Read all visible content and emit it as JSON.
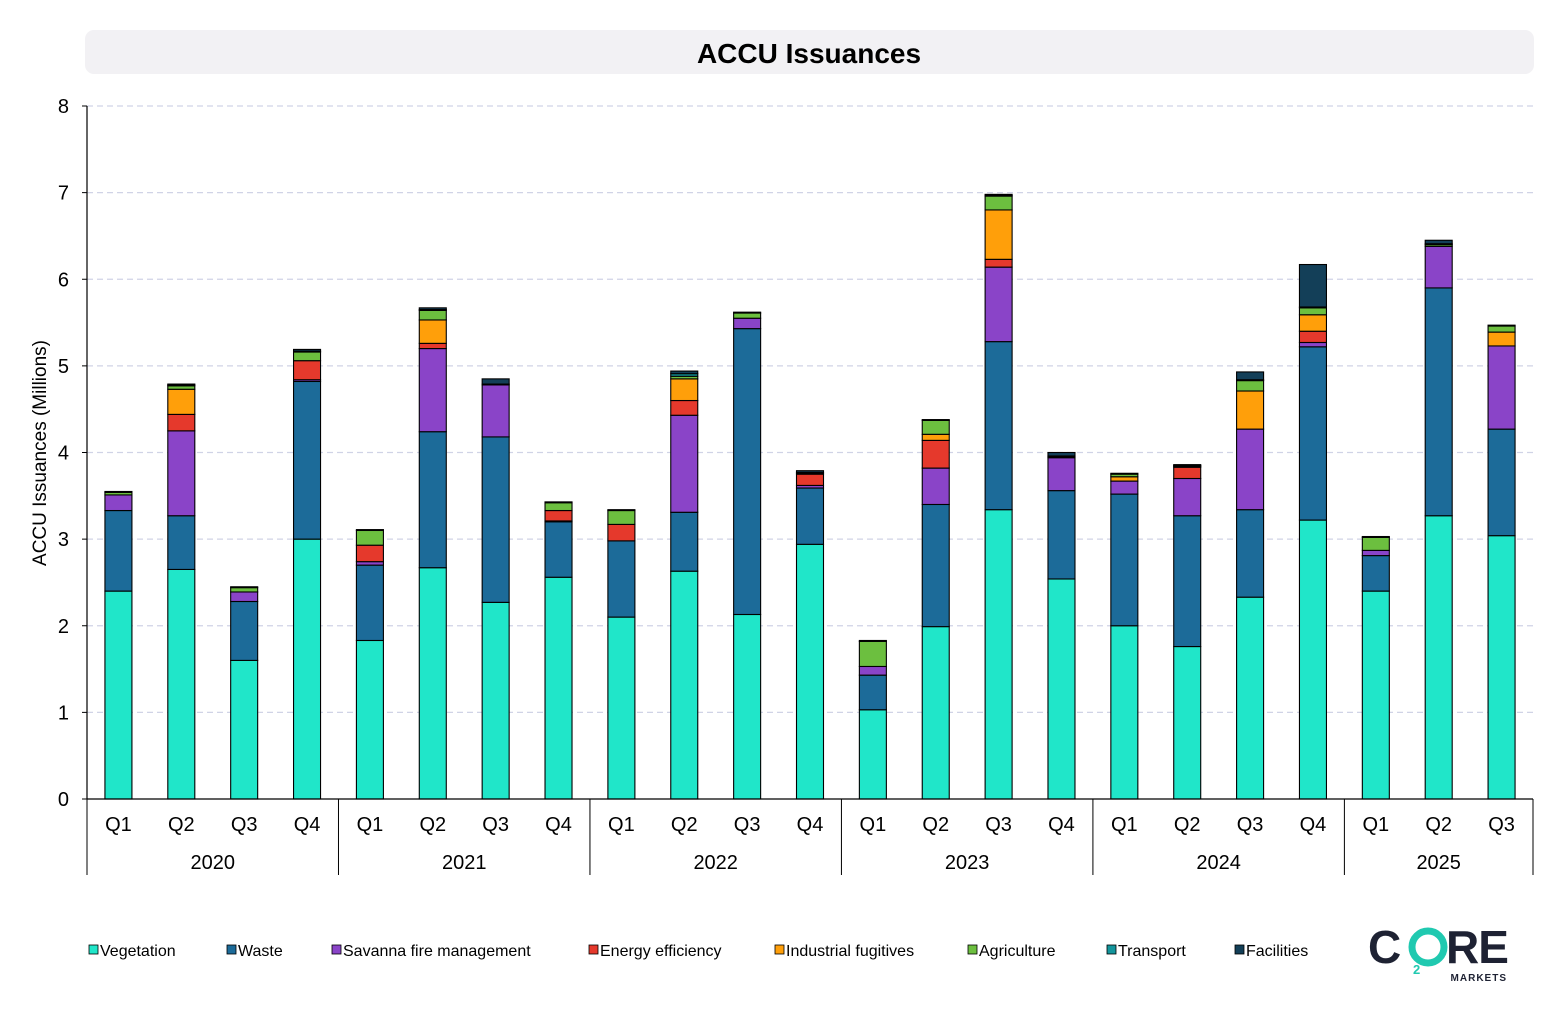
{
  "chart_data": {
    "type": "bar",
    "stacked": true,
    "title": "ACCU Issuances",
    "ylabel": "ACCU Issuances (Millions)",
    "xlabel": "",
    "ylim": [
      0,
      8
    ],
    "yticks": [
      0,
      1,
      2,
      3,
      4,
      5,
      6,
      7,
      8
    ],
    "grid": true,
    "legend_position": "bottom",
    "years": [
      {
        "label": "2020",
        "count": 4
      },
      {
        "label": "2021",
        "count": 4
      },
      {
        "label": "2022",
        "count": 4
      },
      {
        "label": "2023",
        "count": 4
      },
      {
        "label": "2024",
        "count": 4
      },
      {
        "label": "2025",
        "count": 3
      }
    ],
    "categories": [
      "Q1",
      "Q2",
      "Q3",
      "Q4",
      "Q1",
      "Q2",
      "Q3",
      "Q4",
      "Q1",
      "Q2",
      "Q3",
      "Q4",
      "Q1",
      "Q2",
      "Q3",
      "Q4",
      "Q1",
      "Q2",
      "Q3",
      "Q4",
      "Q1",
      "Q2",
      "Q3"
    ],
    "series": [
      {
        "name": "Vegetation",
        "color": "#20E6C9",
        "values": [
          2.4,
          2.65,
          1.6,
          3.0,
          1.83,
          2.67,
          2.27,
          2.56,
          2.1,
          2.63,
          2.13,
          2.94,
          1.03,
          1.99,
          3.34,
          2.54,
          2.0,
          1.76,
          2.33,
          3.22,
          2.4,
          3.27,
          3.04
        ]
      },
      {
        "name": "Waste",
        "color": "#1C6B99",
        "values": [
          0.93,
          0.62,
          0.68,
          1.82,
          0.87,
          1.57,
          1.91,
          0.64,
          0.88,
          0.68,
          3.3,
          0.65,
          0.4,
          1.41,
          1.94,
          1.02,
          1.52,
          1.51,
          1.01,
          2.0,
          0.41,
          2.63,
          1.23
        ]
      },
      {
        "name": "Savanna fire management",
        "color": "#8A44C8",
        "values": [
          0.18,
          0.98,
          0.11,
          0.02,
          0.04,
          0.96,
          0.6,
          0.01,
          0.0,
          1.12,
          0.12,
          0.03,
          0.1,
          0.42,
          0.86,
          0.38,
          0.15,
          0.43,
          0.93,
          0.05,
          0.06,
          0.48,
          0.96
        ]
      },
      {
        "name": "Energy efficiency",
        "color": "#E5392C",
        "values": [
          0.0,
          0.19,
          0.0,
          0.22,
          0.19,
          0.06,
          0.0,
          0.12,
          0.19,
          0.17,
          0.0,
          0.13,
          0.0,
          0.32,
          0.09,
          0.0,
          0.0,
          0.13,
          0.0,
          0.13,
          0.0,
          0.0,
          0.0
        ]
      },
      {
        "name": "Industrial fugitives",
        "color": "#FF9F0A",
        "values": [
          0.0,
          0.29,
          0.0,
          0.0,
          0.0,
          0.27,
          0.0,
          0.0,
          0.0,
          0.25,
          0.0,
          0.0,
          0.0,
          0.07,
          0.57,
          0.0,
          0.05,
          0.0,
          0.44,
          0.19,
          0.0,
          0.0,
          0.16
        ]
      },
      {
        "name": "Agriculture",
        "color": "#6CBF3F",
        "values": [
          0.03,
          0.04,
          0.05,
          0.1,
          0.17,
          0.11,
          0.0,
          0.09,
          0.16,
          0.03,
          0.06,
          0.01,
          0.29,
          0.16,
          0.16,
          0.01,
          0.03,
          0.01,
          0.12,
          0.08,
          0.15,
          0.02,
          0.07
        ]
      },
      {
        "name": "Transport",
        "color": "#13959C",
        "values": [
          0.01,
          0.01,
          0.01,
          0.01,
          0.01,
          0.01,
          0.01,
          0.01,
          0.01,
          0.03,
          0.01,
          0.01,
          0.01,
          0.01,
          0.01,
          0.01,
          0.01,
          0.01,
          0.01,
          0.01,
          0.01,
          0.01,
          0.01
        ]
      },
      {
        "name": "Facilities",
        "color": "#133F58",
        "values": [
          0.0,
          0.01,
          0.0,
          0.02,
          0.0,
          0.02,
          0.06,
          0.0,
          0.0,
          0.03,
          0.0,
          0.02,
          0.0,
          0.0,
          0.01,
          0.04,
          0.0,
          0.01,
          0.09,
          0.49,
          0.0,
          0.04,
          0.0
        ]
      }
    ]
  },
  "logo": {
    "text": "CORE",
    "subscript": "2",
    "subtext": "MARKETS",
    "primary_color": "#1E2233",
    "accent_color": "#20C9B0"
  }
}
